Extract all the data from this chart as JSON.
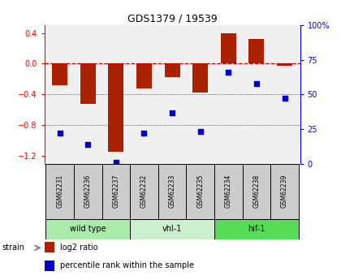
{
  "title": "GDS1379 / 19539",
  "samples": [
    "GSM62231",
    "GSM62236",
    "GSM62237",
    "GSM62232",
    "GSM62233",
    "GSM62235",
    "GSM62234",
    "GSM62238",
    "GSM62239"
  ],
  "log2_ratio": [
    -0.28,
    -0.52,
    -1.15,
    -0.32,
    -0.18,
    -0.38,
    0.4,
    0.32,
    -0.03
  ],
  "percentile_rank": [
    22,
    14,
    1,
    22,
    37,
    23,
    66,
    58,
    47
  ],
  "groups": [
    {
      "label": "wild type",
      "indices": [
        0,
        1,
        2
      ],
      "color": "#aaeaaa"
    },
    {
      "label": "vhl-1",
      "indices": [
        3,
        4,
        5
      ],
      "color": "#ccf0cc"
    },
    {
      "label": "hif-1",
      "indices": [
        6,
        7,
        8
      ],
      "color": "#55dd55"
    }
  ],
  "ylim_left": [
    -1.3,
    0.5
  ],
  "ylim_right": [
    0,
    100
  ],
  "yticks_left": [
    -1.2,
    -0.8,
    -0.4,
    0.0,
    0.4
  ],
  "yticks_right": [
    0,
    25,
    50,
    75,
    100
  ],
  "bar_color": "#aa2200",
  "dot_color": "#0000cc",
  "hline_color": "#cc0000",
  "bg_color": "#f0f0f0",
  "sample_box_color": "#cccccc",
  "strain_label": "strain",
  "legend_bar": "log2 ratio",
  "legend_dot": "percentile rank within the sample"
}
